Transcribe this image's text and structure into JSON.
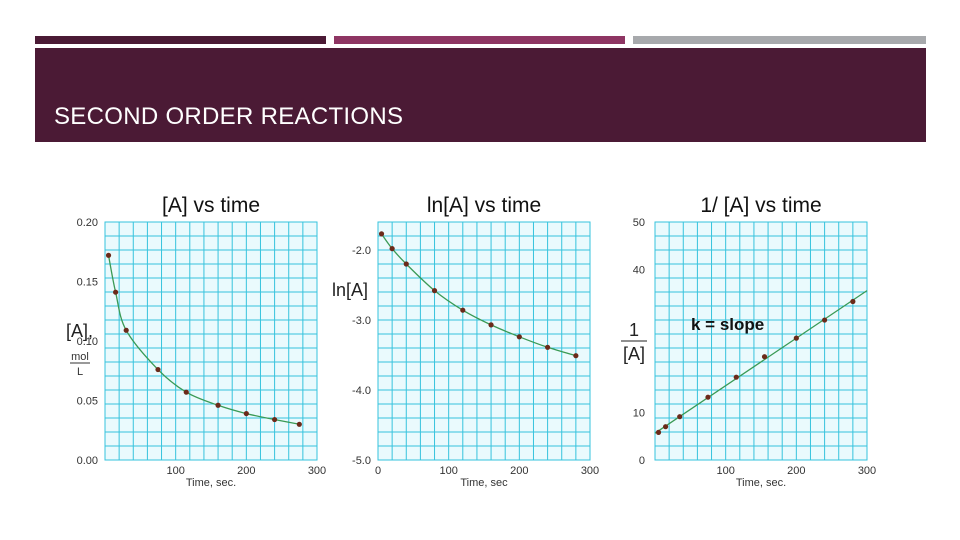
{
  "slide": {
    "title": "SECOND ORDER REACTIONS",
    "stripe_colors": [
      "#4b1a35",
      "#8e3563",
      "#a7a9ac"
    ],
    "header_color": "#4b1a35"
  },
  "chart_data": [
    {
      "type": "line",
      "title": "[A]  vs time",
      "xlabel": "Time, sec.",
      "ylabel": "[A],",
      "yunit_num": "mol",
      "yunit_den": "L",
      "xlim": [
        0,
        300
      ],
      "ylim": [
        0,
        0.2
      ],
      "xticks": [
        "100",
        "200",
        "300"
      ],
      "yticks": [
        "0.20",
        "0.15",
        "0.10",
        "0.05",
        "0.00"
      ],
      "ytick_values": [
        0.2,
        0.15,
        0.1,
        0.05,
        0.0
      ],
      "x": [
        5,
        15,
        30,
        75,
        115,
        160,
        200,
        240,
        275
      ],
      "y": [
        0.172,
        0.141,
        0.109,
        0.076,
        0.057,
        0.046,
        0.039,
        0.034,
        0.03
      ],
      "grid": true
    },
    {
      "type": "line",
      "title": "ln[A] vs time",
      "xlabel": "Time, sec",
      "ylabel": "ln[A]",
      "xlim": [
        0,
        300
      ],
      "ylim": [
        -5.0,
        -1.6
      ],
      "xticks": [
        "0",
        "100",
        "200",
        "300"
      ],
      "xtick_values": [
        0,
        100,
        200,
        300
      ],
      "yticks": [
        "-2.0",
        "-3.0",
        "-4.0",
        "-5.0"
      ],
      "ytick_values": [
        -2.0,
        -3.0,
        -4.0,
        -5.0
      ],
      "x": [
        5,
        20,
        40,
        80,
        120,
        160,
        200,
        240,
        280
      ],
      "y": [
        -1.77,
        -1.98,
        -2.2,
        -2.58,
        -2.86,
        -3.07,
        -3.24,
        -3.39,
        -3.51
      ],
      "grid": true
    },
    {
      "type": "line",
      "title": "1/ [A] vs time",
      "xlabel": "Time, sec.",
      "ylabel_num": "1",
      "ylabel_den": "[A]",
      "annotation": "k = slope",
      "xlim": [
        0,
        300
      ],
      "ylim": [
        0,
        50
      ],
      "xticks": [
        "100",
        "200",
        "300"
      ],
      "yticks": [
        "50",
        "40",
        "10",
        "0"
      ],
      "ytick_values": [
        50,
        40,
        10,
        0
      ],
      "x": [
        5,
        15,
        35,
        75,
        115,
        155,
        200,
        240,
        280
      ],
      "y": [
        5.8,
        7.0,
        9.1,
        13.2,
        17.4,
        21.7,
        25.6,
        29.4,
        33.3
      ],
      "grid": true
    }
  ]
}
